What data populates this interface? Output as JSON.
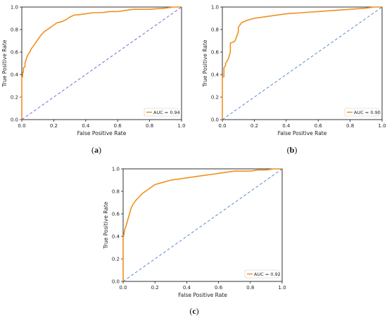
{
  "chart_data": [
    {
      "type": "line",
      "caption_prefix": "(",
      "caption_letter": "a",
      "caption_suffix": ")",
      "xlabel": "False Positive Rate",
      "ylabel": "True Positive Rate",
      "xlim": [
        0,
        1
      ],
      "ylim": [
        0,
        1
      ],
      "xticks": [
        "0.0",
        "0.2",
        "0.4",
        "0.6",
        "0.8",
        "1.0"
      ],
      "yticks": [
        "0.0",
        "0.2",
        "0.4",
        "0.6",
        "0.8",
        "1.0"
      ],
      "legend": "lower-right",
      "series": [
        {
          "name": "AUC = 0.94",
          "color": "#f0901e",
          "x": [
            0,
            0,
            0.005,
            0.005,
            0.01,
            0.01,
            0.02,
            0.02,
            0.03,
            0.04,
            0.05,
            0.06,
            0.08,
            0.1,
            0.12,
            0.14,
            0.16,
            0.18,
            0.2,
            0.22,
            0.25,
            0.28,
            0.3,
            0.33,
            0.35,
            0.4,
            0.45,
            0.5,
            0.55,
            0.6,
            0.65,
            0.7,
            0.8,
            0.9,
            0.95,
            1.0
          ],
          "y": [
            0,
            0.38,
            0.38,
            0.42,
            0.42,
            0.46,
            0.47,
            0.5,
            0.55,
            0.58,
            0.6,
            0.63,
            0.67,
            0.71,
            0.75,
            0.78,
            0.8,
            0.82,
            0.84,
            0.86,
            0.87,
            0.89,
            0.91,
            0.93,
            0.93,
            0.94,
            0.95,
            0.95,
            0.96,
            0.96,
            0.97,
            0.98,
            0.98,
            0.99,
            1.0,
            1.0
          ]
        },
        {
          "name": "",
          "color": "#6a5acd",
          "dashed": true,
          "x": [
            0,
            1
          ],
          "y": [
            0,
            1
          ]
        }
      ]
    },
    {
      "type": "line",
      "caption_prefix": "(",
      "caption_letter": "b",
      "caption_suffix": ")",
      "xlabel": "False Positive Rate",
      "ylabel": "True Positive Rate",
      "xlim": [
        0,
        1
      ],
      "ylim": [
        0,
        1
      ],
      "xticks": [
        "0.0",
        "0.2",
        "0.4",
        "0.6",
        "0.8",
        "1.0"
      ],
      "yticks": [
        "0.0",
        "0.2",
        "0.4",
        "0.6",
        "0.8",
        "1.0"
      ],
      "legend": "lower-right",
      "series": [
        {
          "name": "AUC = 0.90",
          "color": "#f0901e",
          "x": [
            0,
            0,
            0.01,
            0.01,
            0.02,
            0.02,
            0.03,
            0.04,
            0.05,
            0.05,
            0.07,
            0.08,
            0.09,
            0.1,
            0.1,
            0.12,
            0.15,
            0.2,
            0.25,
            0.3,
            0.35,
            0.4,
            0.5,
            0.6,
            0.7,
            0.8,
            0.9,
            0.95,
            1.0
          ],
          "y": [
            0,
            0.38,
            0.38,
            0.46,
            0.48,
            0.5,
            0.52,
            0.55,
            0.6,
            0.68,
            0.69,
            0.7,
            0.74,
            0.78,
            0.82,
            0.86,
            0.88,
            0.9,
            0.91,
            0.92,
            0.93,
            0.94,
            0.95,
            0.96,
            0.97,
            0.98,
            0.99,
            1.0,
            1.0
          ]
        },
        {
          "name": "",
          "color": "#4a7fc1",
          "dashed": true,
          "x": [
            0,
            1
          ],
          "y": [
            0,
            1
          ]
        }
      ]
    },
    {
      "type": "line",
      "caption_prefix": "(",
      "caption_letter": "c",
      "caption_suffix": ")",
      "xlabel": "False Positive Rate",
      "ylabel": "True Positive Rate",
      "xlim": [
        0,
        1
      ],
      "ylim": [
        0,
        1
      ],
      "xticks": [
        "0.0",
        "0.2",
        "0.4",
        "0.6",
        "0.8",
        "1.0"
      ],
      "yticks": [
        "0.0",
        "0.2",
        "0.4",
        "0.6",
        "0.8",
        "1.0"
      ],
      "legend": "lower-right",
      "series": [
        {
          "name": "AUC = 0.92",
          "color": "#f0901e",
          "x": [
            0,
            0,
            0.005,
            0.01,
            0.02,
            0.03,
            0.04,
            0.05,
            0.06,
            0.08,
            0.1,
            0.12,
            0.15,
            0.18,
            0.2,
            0.25,
            0.3,
            0.35,
            0.4,
            0.45,
            0.5,
            0.55,
            0.6,
            0.65,
            0.7,
            0.8,
            0.85,
            0.9,
            0.95,
            1.0
          ],
          "y": [
            0,
            0.38,
            0.42,
            0.46,
            0.5,
            0.55,
            0.6,
            0.65,
            0.68,
            0.72,
            0.75,
            0.78,
            0.81,
            0.84,
            0.86,
            0.88,
            0.9,
            0.91,
            0.92,
            0.93,
            0.94,
            0.95,
            0.96,
            0.97,
            0.98,
            0.98,
            0.99,
            0.99,
            1.0,
            1.0
          ]
        },
        {
          "name": "",
          "color": "#4a7fc1",
          "dashed": true,
          "x": [
            0,
            1
          ],
          "y": [
            0,
            1
          ]
        }
      ]
    }
  ]
}
